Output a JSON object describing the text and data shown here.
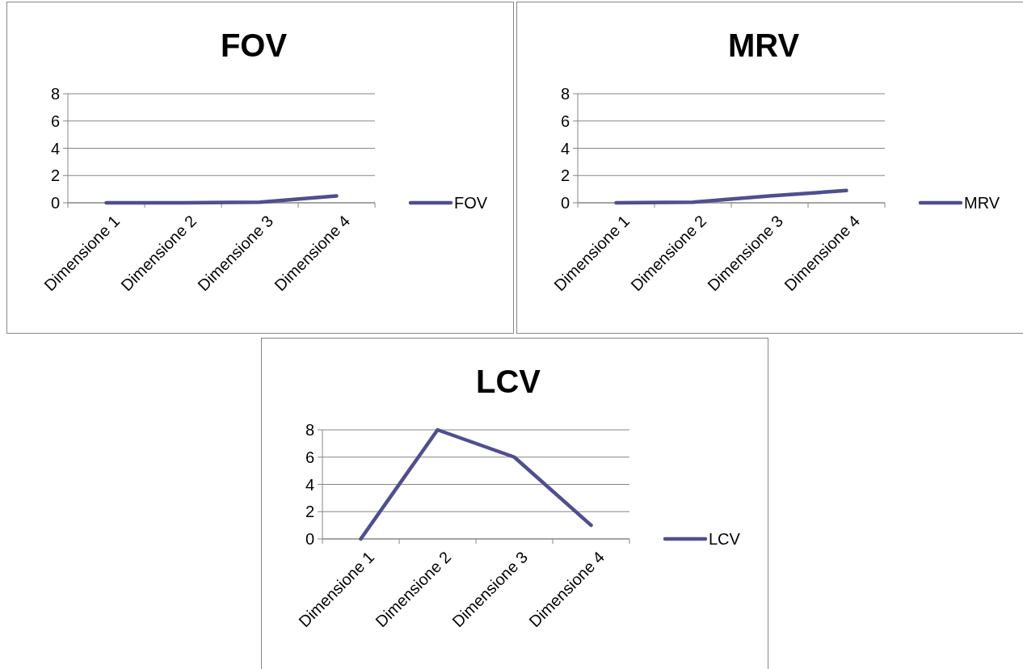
{
  "chart_data": [
    {
      "type": "line",
      "title": "FOV",
      "categories": [
        "Dimensione 1",
        "Dimensione 2",
        "Dimensione 3",
        "Dimensione 4"
      ],
      "series": [
        {
          "name": "FOV",
          "color": "#4f4f8f",
          "values": [
            0,
            0,
            0.05,
            0.5
          ]
        }
      ],
      "ylim": [
        0,
        8
      ],
      "yticks": [
        0,
        2,
        4,
        6,
        8
      ],
      "grid": "y",
      "legend": "right",
      "marker": "none"
    },
    {
      "type": "line",
      "title": "MRV",
      "categories": [
        "Dimensione 1",
        "Dimensione 2",
        "Dimensione 3",
        "Dimensione 4"
      ],
      "series": [
        {
          "name": "MRV",
          "color": "#4f4f8f",
          "values": [
            0,
            0.05,
            0.5,
            0.9
          ]
        }
      ],
      "ylim": [
        0,
        8
      ],
      "yticks": [
        0,
        2,
        4,
        6,
        8
      ],
      "grid": "y",
      "legend": "right",
      "marker": "none"
    },
    {
      "type": "line",
      "title": "LCV",
      "categories": [
        "Dimensione 1",
        "Dimensione 2",
        "Dimensione 3",
        "Dimensione 4"
      ],
      "series": [
        {
          "name": "LCV",
          "color": "#4f4f8f",
          "values": [
            0,
            8,
            6,
            1
          ]
        }
      ],
      "ylim": [
        0,
        8
      ],
      "yticks": [
        0,
        2,
        4,
        6,
        8
      ],
      "grid": "y",
      "legend": "right",
      "marker": "none"
    }
  ]
}
